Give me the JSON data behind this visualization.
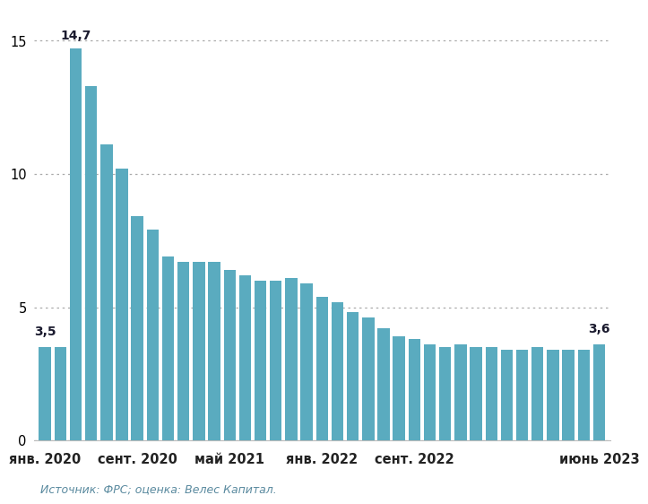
{
  "values": [
    3.5,
    3.5,
    14.7,
    13.3,
    11.1,
    10.2,
    8.4,
    7.9,
    6.9,
    6.7,
    6.7,
    6.7,
    6.4,
    6.2,
    6.0,
    6.0,
    6.1,
    5.9,
    5.4,
    5.2,
    4.8,
    4.6,
    4.2,
    3.9,
    3.8,
    3.6,
    3.5,
    3.6,
    3.5,
    3.5,
    3.4,
    3.4,
    3.5,
    3.4,
    3.4,
    3.4,
    3.6
  ],
  "xtick_positions": [
    0,
    6,
    12,
    18,
    24,
    36
  ],
  "xtick_labels": [
    "янв. 2020",
    "сент. 2020",
    "май 2021",
    "янв. 2022",
    "сент. 2022",
    "июнь 2023"
  ],
  "yticks": [
    0,
    5,
    10,
    15
  ],
  "ylim": [
    0,
    16.2
  ],
  "bar_color": "#5aabbf",
  "annotation_first": "3,5",
  "annotation_last": "3,6",
  "annotation_peak": "14,7",
  "source_text": "Источник: ФРС; оценка: Велес Капитал.",
  "background_color": "#ffffff",
  "label_color": "#1a1a2e",
  "grid_color": "#aaaaaa",
  "source_color": "#5a8a9f",
  "annotation_peak_idx": 2,
  "annotation_first_idx": 0,
  "annotation_last_idx": 36
}
